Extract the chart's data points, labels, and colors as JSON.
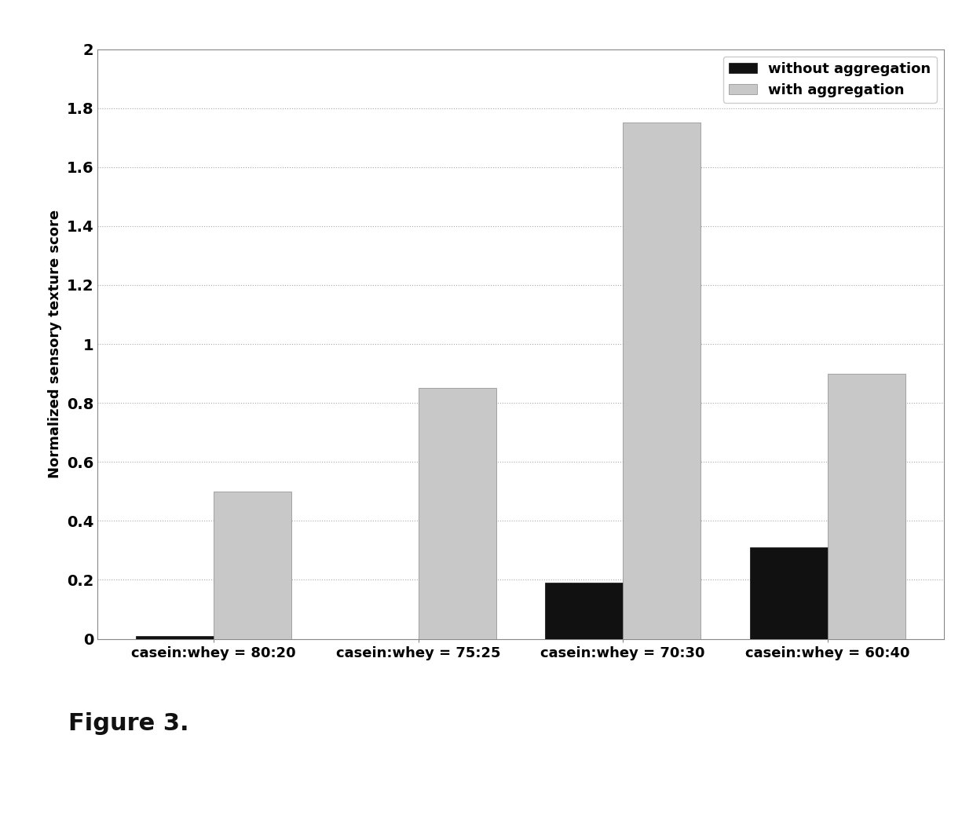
{
  "categories": [
    "casein:whey = 80:20",
    "casein:whey = 75:25",
    "casein:whey = 70:30",
    "casein:whey = 60:40"
  ],
  "without_aggregation": [
    0.01,
    0.0,
    0.19,
    0.31
  ],
  "with_aggregation": [
    0.5,
    0.85,
    1.75,
    0.9
  ],
  "color_without": "#111111",
  "color_with": "#c8c8c8",
  "ylabel": "Normalized sensory texture score",
  "ylim": [
    0,
    2.0
  ],
  "yticks": [
    0,
    0.2,
    0.4,
    0.6,
    0.8,
    1.0,
    1.2,
    1.4,
    1.6,
    1.8,
    2.0
  ],
  "ytick_labels": [
    "0",
    "0.2",
    "0.4",
    "0.6",
    "0.8",
    "1",
    "1.2",
    "1.4",
    "1.6",
    "1.8",
    "2"
  ],
  "legend_labels": [
    "without aggregation",
    "with aggregation"
  ],
  "figure_caption": "Figure 3.",
  "bar_width": 0.38,
  "background_color": "#ffffff",
  "plot_bg_color": "#ffffff",
  "grid_color": "#aaaaaa",
  "label_fontsize": 13,
  "tick_fontsize": 14,
  "legend_fontsize": 13,
  "caption_fontsize": 22
}
